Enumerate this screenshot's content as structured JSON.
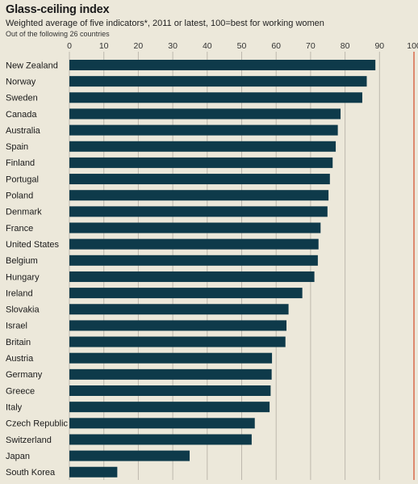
{
  "header": {
    "title": "Glass-ceiling index",
    "subtitle": "Weighted average of five indicators*, 2011 or latest, 100=best for working women",
    "note": "Out of the following 26 countries"
  },
  "colors": {
    "bar": "#0e3a4a",
    "grid": "#bdb8ad",
    "reference_line": "#d9694a",
    "background": "#ece8da"
  },
  "chart_data": {
    "type": "bar",
    "orientation": "horizontal",
    "title": "Glass-ceiling index",
    "subtitle": "Weighted average of five indicators*, 2011 or latest, 100=best for working women",
    "xlim": [
      0,
      100
    ],
    "x_ticks": [
      0,
      10,
      20,
      30,
      40,
      50,
      60,
      70,
      80,
      90,
      100
    ],
    "tick_position": "top",
    "grid": true,
    "categories": [
      "New Zealand",
      "Norway",
      "Sweden",
      "Canada",
      "Australia",
      "Spain",
      "Finland",
      "Portugal",
      "Poland",
      "Denmark",
      "France",
      "United States",
      "Belgium",
      "Hungary",
      "Ireland",
      "Slovakia",
      "Israel",
      "Britain",
      "Austria",
      "Germany",
      "Greece",
      "Italy",
      "Czech Republic",
      "Switzerland",
      "Japan",
      "South Korea"
    ],
    "values": [
      88.8,
      86.3,
      85.0,
      78.7,
      77.9,
      77.3,
      76.4,
      75.6,
      75.2,
      74.9,
      72.9,
      72.3,
      72.1,
      71.1,
      67.6,
      63.6,
      63.0,
      62.7,
      58.8,
      58.7,
      58.4,
      58.1,
      53.8,
      52.9,
      34.9,
      13.9
    ]
  }
}
